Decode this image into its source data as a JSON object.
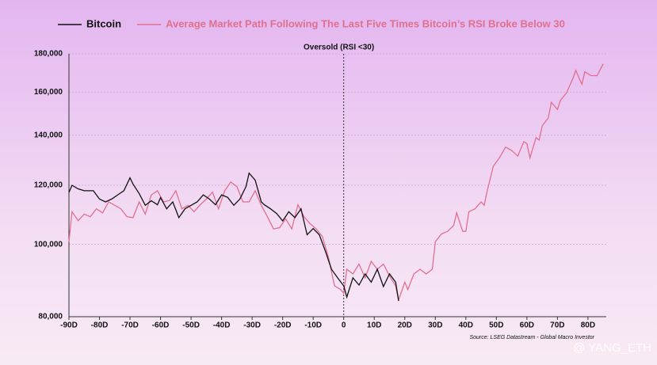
{
  "chart_data": {
    "type": "line",
    "annotation": "Oversold (RSI <30)",
    "source": "Source: LSEG Datastream - Global Macro Investor",
    "watermark": "@ YANG_ETH",
    "log_y": true,
    "grid": true,
    "legend": "top",
    "vline": 0,
    "xlim": [
      -90,
      86
    ],
    "xticks": [
      {
        "value": -90,
        "label": "-90D"
      },
      {
        "value": -80,
        "label": "-80D"
      },
      {
        "value": -70,
        "label": "-70D"
      },
      {
        "value": -60,
        "label": "-60D"
      },
      {
        "value": -50,
        "label": "-50D"
      },
      {
        "value": -40,
        "label": "-40D"
      },
      {
        "value": -30,
        "label": "-30D"
      },
      {
        "value": -20,
        "label": "-20D"
      },
      {
        "value": -10,
        "label": "-10D"
      },
      0,
      {
        "value": 10,
        "label": "10D"
      },
      {
        "value": 20,
        "label": "20D"
      },
      {
        "value": 30,
        "label": "30D"
      },
      {
        "value": 40,
        "label": "40D"
      },
      {
        "value": 50,
        "label": "50D"
      },
      {
        "value": 60,
        "label": "60D"
      },
      {
        "value": 70,
        "label": "70D"
      },
      {
        "value": 80,
        "label": "80D"
      }
    ],
    "ylim": [
      80000,
      180000
    ],
    "yticks": [
      {
        "value": 80000,
        "label": "80,000"
      },
      {
        "value": 100000,
        "label": "100,000"
      },
      {
        "value": 120000,
        "label": "120,000"
      },
      {
        "value": 140000,
        "label": "140,000"
      },
      {
        "value": 160000,
        "label": "160,000"
      },
      {
        "value": 180000,
        "label": "180,000"
      }
    ],
    "series": [
      {
        "name": "Bitcoin",
        "color": "#111111",
        "x": [
          -90,
          -89,
          -87,
          -85,
          -82,
          -80,
          -78,
          -76,
          -74,
          -72,
          -70,
          -69,
          -67,
          -65,
          -63,
          -61,
          -60,
          -58,
          -56,
          -54,
          -52,
          -50,
          -48,
          -46,
          -44,
          -42,
          -40,
          -38,
          -36,
          -34,
          -32,
          -31,
          -29,
          -27,
          -26,
          -24,
          -22,
          -20,
          -18,
          -16,
          -14,
          -12,
          -10,
          -8,
          -6,
          -4,
          -2,
          0,
          1,
          3,
          5,
          7,
          9,
          11,
          13,
          15,
          17,
          18
        ],
        "values": [
          117400,
          120000,
          118700,
          118000,
          118000,
          115000,
          114000,
          115000,
          116500,
          118000,
          122800,
          120400,
          117000,
          112800,
          114400,
          113000,
          115500,
          111600,
          114000,
          108600,
          111600,
          112800,
          114000,
          116500,
          115000,
          113000,
          116500,
          115600,
          112800,
          115000,
          119500,
          124600,
          121900,
          114000,
          113000,
          111600,
          110000,
          107500,
          110600,
          108600,
          111600,
          103000,
          105000,
          103000,
          97900,
          92600,
          90200,
          88000,
          85000,
          90200,
          88200,
          91300,
          89000,
          92600,
          87800,
          91300,
          89000,
          84000
        ]
      },
      {
        "name": "Average Market Path Following The Last Five Times Bitcoin’s RSI Broke Below 30",
        "color": "#e0708f",
        "x": [
          -90,
          -89,
          -87,
          -85,
          -83,
          -81,
          -79,
          -77,
          -75,
          -73,
          -71,
          -69,
          -67,
          -65,
          -63,
          -61,
          -59,
          -57,
          -55,
          -53,
          -51,
          -49,
          -47,
          -45,
          -43,
          -41,
          -39,
          -37,
          -35,
          -33,
          -31,
          -29,
          -27,
          -25,
          -23,
          -21,
          -19,
          -17,
          -15,
          -13,
          -11,
          -9,
          -7,
          -5,
          -3,
          -1,
          0,
          1,
          3,
          5,
          7,
          9,
          11,
          13,
          15,
          17,
          18,
          20,
          21,
          23,
          25,
          27,
          29,
          30,
          32,
          34,
          36,
          37,
          39,
          40,
          41,
          43,
          45,
          46,
          47,
          49,
          51,
          53,
          55,
          57,
          59,
          60,
          61,
          63,
          64,
          65,
          67,
          68,
          70,
          71,
          73,
          75,
          76,
          77,
          78,
          79,
          81,
          83,
          85
        ],
        "values": [
          100800,
          110600,
          107600,
          109800,
          108900,
          111600,
          110200,
          114000,
          112800,
          111600,
          108900,
          108600,
          114000,
          109800,
          116500,
          118000,
          114000,
          114500,
          118000,
          111600,
          112800,
          110600,
          113000,
          115000,
          117500,
          111600,
          118000,
          121200,
          119500,
          114000,
          114000,
          118000,
          112800,
          108900,
          104900,
          105300,
          108200,
          104900,
          113000,
          108900,
          106600,
          104900,
          102500,
          96100,
          88000,
          87000,
          86000,
          92600,
          91300,
          94100,
          90200,
          94900,
          92600,
          94100,
          90700,
          88000,
          84300,
          89000,
          87000,
          91300,
          92600,
          91300,
          92600,
          100800,
          103300,
          104100,
          106000,
          110200,
          104100,
          104100,
          110600,
          111600,
          114000,
          112800,
          118000,
          127300,
          130600,
          135000,
          133600,
          131300,
          137300,
          136500,
          130600,
          139000,
          137900,
          144100,
          147700,
          155000,
          151600,
          156000,
          159600,
          166600,
          171100,
          167400,
          163900,
          170300,
          168300,
          168300,
          174500
        ]
      }
    ]
  }
}
